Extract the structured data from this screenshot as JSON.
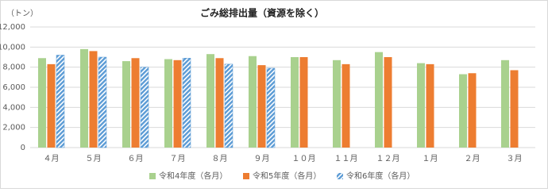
{
  "chart_data": {
    "type": "bar",
    "title": "ごみ総排出量（資源を除く）",
    "y_unit": "（トン）",
    "categories": [
      "４月",
      "５月",
      "６月",
      "７月",
      "８月",
      "９月",
      "１０月",
      "１１月",
      "１２月",
      "１月",
      "２月",
      "３月"
    ],
    "series": [
      {
        "name": "令和4年度（各月）",
        "color": "#a9d18e",
        "values": [
          8900,
          9800,
          8600,
          8800,
          9300,
          9100,
          9000,
          8700,
          9500,
          8400,
          7300,
          8700
        ]
      },
      {
        "name": "令和5年度（各月）",
        "color": "#ed7d31",
        "values": [
          8300,
          9600,
          8900,
          8700,
          8900,
          8200,
          9000,
          8300,
          9000,
          8300,
          7400,
          7700
        ]
      },
      {
        "name": "令和6年度（各月）",
        "color": "#5b9bd5",
        "hatch": true,
        "values": [
          9200,
          9000,
          8000,
          8900,
          8300,
          7900,
          null,
          null,
          null,
          null,
          null,
          null
        ]
      }
    ],
    "ylim": [
      0,
      12000
    ],
    "yticks": [
      0,
      {
        "value": 2000,
        "label": "2,000"
      },
      {
        "value": 4000,
        "label": "4,000"
      },
      {
        "value": 6000,
        "label": "6,000"
      },
      {
        "value": 8000,
        "label": "8,000"
      },
      {
        "value": 10000,
        "label": "10,000"
      },
      {
        "value": 12000,
        "label": "12,000"
      }
    ],
    "grid": true,
    "legend": "bottom"
  }
}
